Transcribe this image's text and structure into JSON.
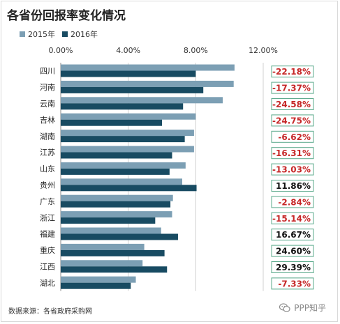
{
  "title": "各省份回报率变化情况",
  "source": "数据来源：各省政府采购网",
  "watermark": "PPP知乎",
  "colors": {
    "series_2015": "#7c9fb4",
    "series_2016": "#184b62",
    "negative_text": "#c62828",
    "positive_text": "#111111",
    "box_border": "#59a88a"
  },
  "chart_data": {
    "type": "bar",
    "orientation": "horizontal",
    "title": "各省份回报率变化情况",
    "xlim": [
      0,
      12
    ],
    "x_ticks": [
      "0.00%",
      "4.00%",
      "8.00%",
      "12.00%"
    ],
    "grid": "vertical",
    "legend_position": "top-left",
    "categories": [
      "四川",
      "河南",
      "云南",
      "吉林",
      "湖南",
      "江苏",
      "山东",
      "贵州",
      "广东",
      "浙江",
      "福建",
      "重庆",
      "江西",
      "湖北"
    ],
    "series": [
      {
        "name": "2015年",
        "values": [
          10.3,
          10.25,
          9.6,
          8.0,
          7.9,
          7.9,
          7.4,
          7.2,
          6.65,
          6.6,
          5.95,
          4.95,
          4.85,
          4.45
        ]
      },
      {
        "name": "2016年",
        "values": [
          8.0,
          8.45,
          7.25,
          6.0,
          7.35,
          6.6,
          6.45,
          8.05,
          6.5,
          5.6,
          6.95,
          6.15,
          6.3,
          4.15
        ]
      }
    ],
    "change_labels": [
      "-22.18%",
      "-17.37%",
      "-24.58%",
      "-24.75%",
      "-6.62%",
      "-16.31%",
      "-13.03%",
      "11.86%",
      "-2.84%",
      "-15.14%",
      "16.67%",
      "24.60%",
      "29.39%",
      "-7.33%"
    ]
  }
}
